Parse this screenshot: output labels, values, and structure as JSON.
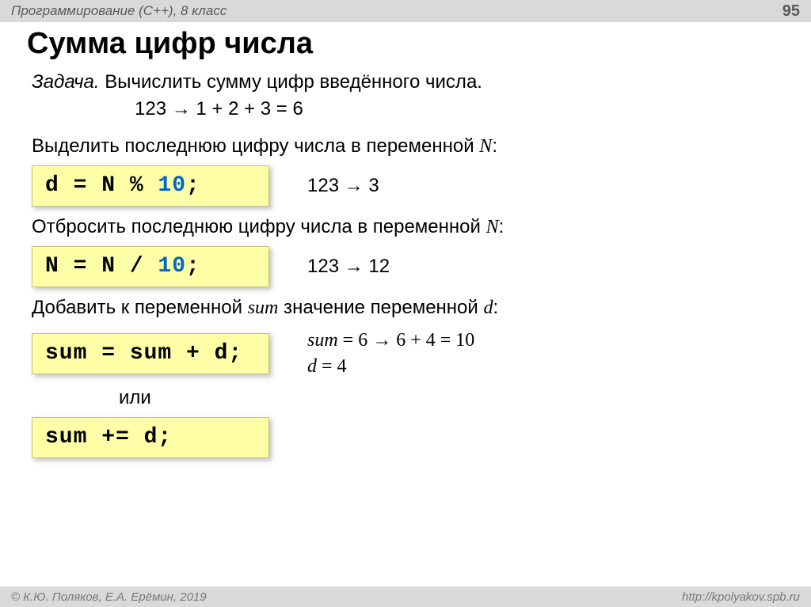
{
  "header": {
    "left": "Программирование (C++), 8 класс",
    "page_number": "95"
  },
  "title": "Сумма цифр числа",
  "task": {
    "label": "Задача.",
    "text": " Вычислить сумму цифр введённого числа.",
    "example": "123 → 1 + 2 + 3 = 6"
  },
  "section1": {
    "text_pre": "Выделить последнюю цифру числа в переменной ",
    "var": "N",
    "text_post": ":",
    "code_plain": "d = N % ",
    "code_num": "10",
    "code_tail": ";",
    "side": "123 → 3"
  },
  "section2": {
    "text_pre": "Отбросить последнюю цифру числа в переменной ",
    "var": "N",
    "text_post": ":",
    "code_plain": "N = N / ",
    "code_num": "10",
    "code_tail": ";",
    "side": "123 → 12"
  },
  "section3": {
    "text_pre": "Добавить к переменной ",
    "var1": "sum",
    "text_mid": " значение переменной ",
    "var2": "d",
    "text_post": ":",
    "code1": "sum = sum + d;",
    "or_label": "или",
    "code2": "sum += d;",
    "side_line1_pre": "sum",
    "side_line1_post": " = 6 → 6 + 4 = 10",
    "side_line2_pre": "d",
    "side_line2_post": " = 4"
  },
  "footer": {
    "left": "© К.Ю. Поляков, Е.А. Ерёмин, 2019",
    "right": "http://kpolyakov.spb.ru"
  },
  "colors": {
    "header_bg": "#d9d9d9",
    "code_bg": "#ffffa8",
    "code_border": "#c2c27a",
    "num_color": "#0066cc"
  }
}
